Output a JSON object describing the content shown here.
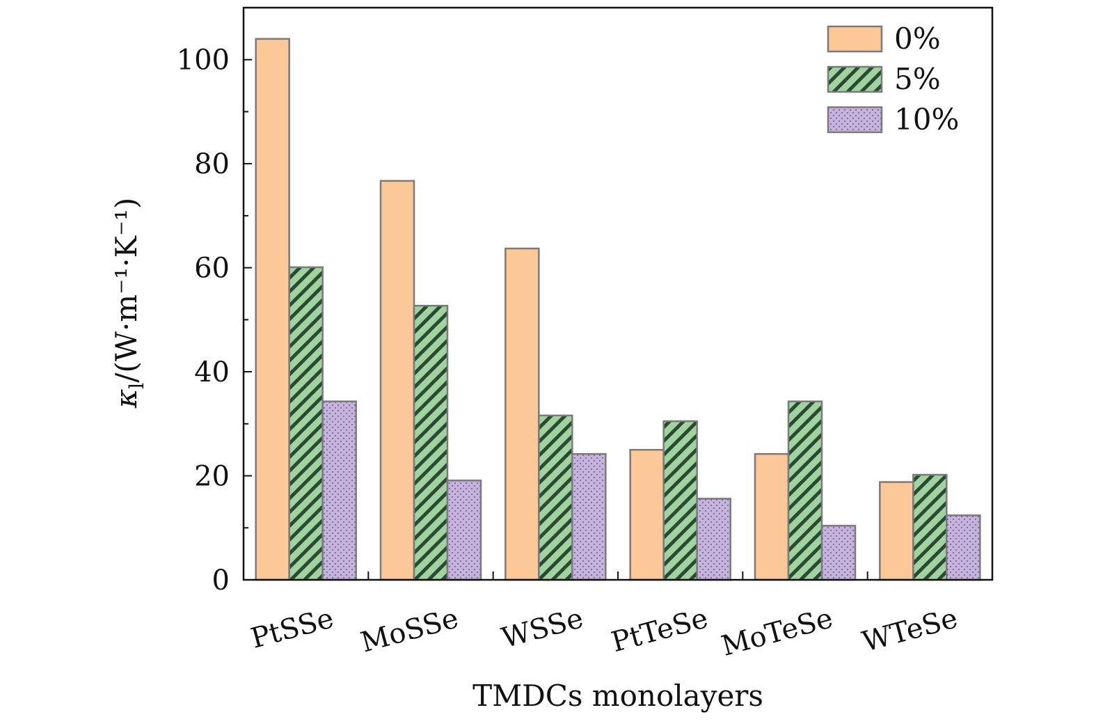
{
  "chart_data": {
    "type": "bar",
    "title": "",
    "xlabel": "TMDCs monolayers",
    "ylabel_symbol": "κ",
    "ylabel_subscript": "l",
    "ylabel_units": "/(W·m⁻¹·K⁻¹)",
    "ylim": [
      0,
      110
    ],
    "yticks": [
      0,
      20,
      40,
      60,
      80,
      100
    ],
    "grid": false,
    "legend_position": "top-right",
    "categories": [
      "PtSSe",
      "MoSSe",
      "WSSe",
      "PtTeSe",
      "MoTeSe",
      "WTeSe"
    ],
    "series": [
      {
        "name": "0%",
        "color": "#fcc898",
        "pattern": "solid",
        "values": [
          104.0,
          76.7,
          63.7,
          25.0,
          24.2,
          18.8
        ]
      },
      {
        "name": "5%",
        "color": "#9fd49f",
        "pattern": "diagonal-hatch",
        "values": [
          60.1,
          52.7,
          31.6,
          30.5,
          34.3,
          20.2
        ]
      },
      {
        "name": "10%",
        "color": "#c5b3dd",
        "pattern": "dots",
        "values": [
          34.3,
          19.1,
          24.2,
          15.6,
          10.4,
          12.4
        ]
      }
    ]
  }
}
